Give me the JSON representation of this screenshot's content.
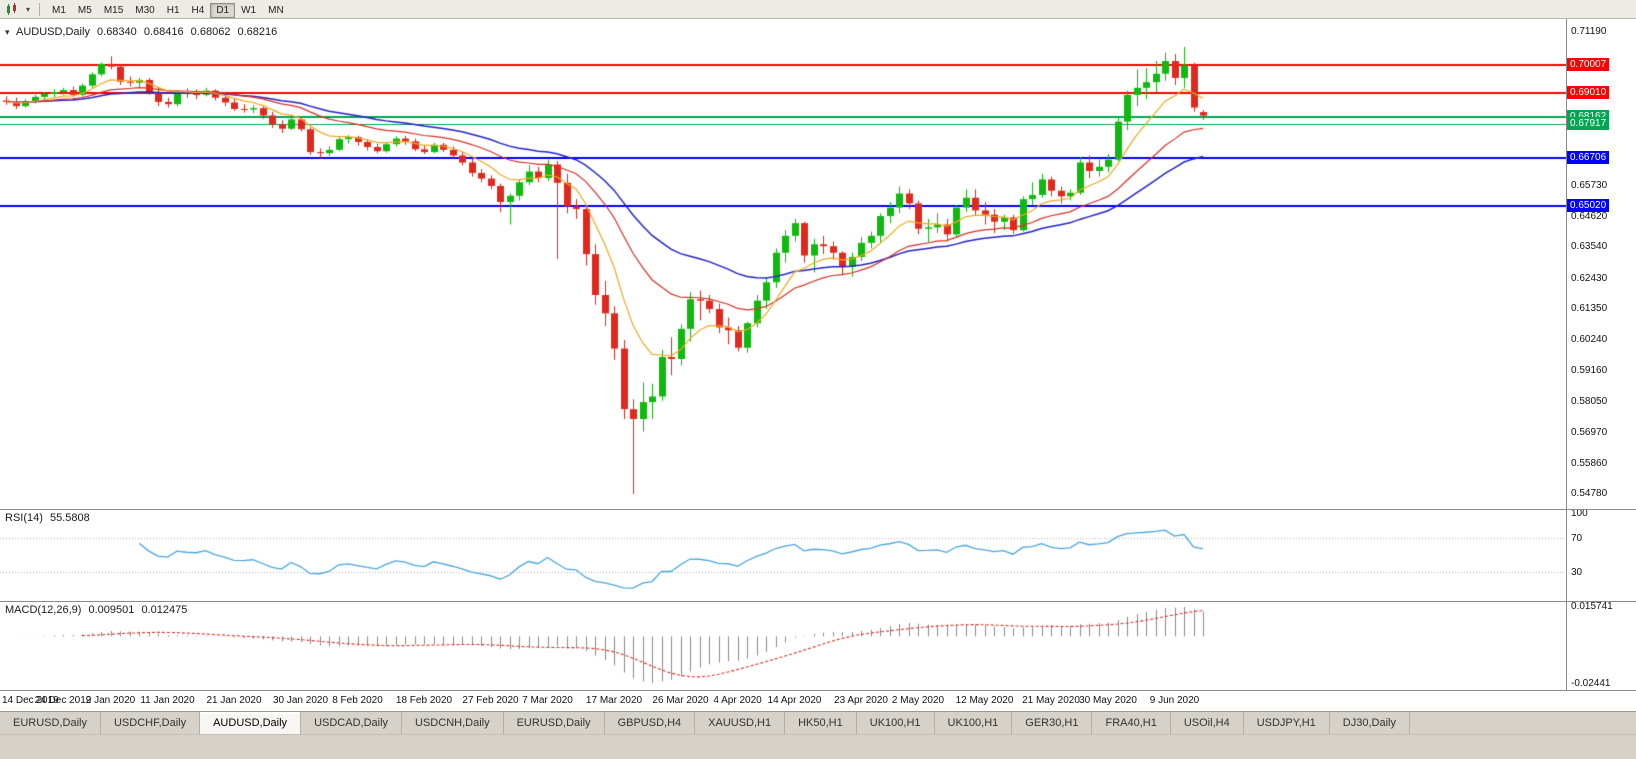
{
  "toolbar": {
    "timeframes": [
      {
        "label": "M1",
        "active": false
      },
      {
        "label": "M5",
        "active": false
      },
      {
        "label": "M15",
        "active": false
      },
      {
        "label": "M30",
        "active": false
      },
      {
        "label": "H1",
        "active": false
      },
      {
        "label": "H4",
        "active": false
      },
      {
        "label": "D1",
        "active": true
      },
      {
        "label": "W1",
        "active": false
      },
      {
        "label": "MN",
        "active": false
      }
    ]
  },
  "chart": {
    "title": {
      "symbol": "AUDUSD,Daily",
      "open": "0.68340",
      "high": "0.68416",
      "low": "0.68062",
      "close": "0.68216"
    },
    "colors": {
      "up": "#0fb90f",
      "down": "#e0291e",
      "ma_fast": "#efa71f",
      "ma_mid": "#d93025",
      "ma_slow": "#2222cc",
      "rsi_line": "#4aa6de",
      "rsi_level": "#b0b0b0",
      "macd_hist": "#8a8a8a",
      "macd_signal": "#d93025",
      "axis_text": "#111111"
    },
    "price_axis": {
      "range": {
        "max": 0.715,
        "min": 0.544
      },
      "ticks": [
        "0.71190",
        "0.65730",
        "0.64620",
        "0.63540",
        "0.62430",
        "0.61350",
        "0.60240",
        "0.59160",
        "0.58050",
        "0.56970",
        "0.55860",
        "0.54780"
      ]
    },
    "hlines": [
      {
        "price": 0.70007,
        "label": "0.70007",
        "color": "#ff0000",
        "width": 2
      },
      {
        "price": 0.6901,
        "label": "0.69010",
        "color": "#ff0000",
        "width": 2
      },
      {
        "price": 0.68162,
        "label": "0.68162",
        "color": "#00a651",
        "width": 2
      },
      {
        "price": 0.67917,
        "label": "0.67917",
        "color": "#00a651",
        "width": 1
      },
      {
        "price": 0.66706,
        "label": "0.66706",
        "color": "#0000ff",
        "width": 2
      },
      {
        "price": 0.6502,
        "label": "0.65020",
        "color": "#0000ff",
        "width": 2
      }
    ],
    "date_labels": [
      {
        "label": "14 Dec 2019",
        "i": 0
      },
      {
        "label": "24 Dec 2019",
        "i": 6
      },
      {
        "label": "2 Jan 2020",
        "i": 11
      },
      {
        "label": "11 Jan 2020",
        "i": 17
      },
      {
        "label": "21 Jan 2020",
        "i": 24
      },
      {
        "label": "30 Jan 2020",
        "i": 31
      },
      {
        "label": "8 Feb 2020",
        "i": 37
      },
      {
        "label": "18 Feb 2020",
        "i": 44
      },
      {
        "label": "27 Feb 2020",
        "i": 51
      },
      {
        "label": "7 Mar 2020",
        "i": 57
      },
      {
        "label": "17 Mar 2020",
        "i": 64
      },
      {
        "label": "26 Mar 2020",
        "i": 71
      },
      {
        "label": "4 Apr 2020",
        "i": 77
      },
      {
        "label": "14 Apr 2020",
        "i": 83
      },
      {
        "label": "23 Apr 2020",
        "i": 90
      },
      {
        "label": "2 May 2020",
        "i": 96
      },
      {
        "label": "12 May 2020",
        "i": 103
      },
      {
        "label": "21 May 2020",
        "i": 110
      },
      {
        "label": "30 May 2020",
        "i": 116
      },
      {
        "label": "9 Jun 2020",
        "i": 123
      }
    ],
    "ma": {
      "fast_period": 8,
      "mid_period": 20,
      "slow_period": 34
    },
    "candles": [
      [
        0.6875,
        0.689,
        0.686,
        0.687
      ],
      [
        0.687,
        0.6885,
        0.6845,
        0.6855
      ],
      [
        0.6855,
        0.688,
        0.685,
        0.6872
      ],
      [
        0.6872,
        0.6895,
        0.6865,
        0.6888
      ],
      [
        0.6888,
        0.6905,
        0.688,
        0.6898
      ],
      [
        0.6898,
        0.6915,
        0.6885,
        0.6905
      ],
      [
        0.6905,
        0.692,
        0.6895,
        0.6912
      ],
      [
        0.6912,
        0.6925,
        0.6888,
        0.6895
      ],
      [
        0.6895,
        0.6935,
        0.689,
        0.6928
      ],
      [
        0.6928,
        0.6975,
        0.692,
        0.6968
      ],
      [
        0.6968,
        0.701,
        0.696,
        0.7005
      ],
      [
        0.7005,
        0.7032,
        0.6985,
        0.6995
      ],
      [
        0.6995,
        0.7005,
        0.693,
        0.6942
      ],
      [
        0.6942,
        0.696,
        0.6925,
        0.6938
      ],
      [
        0.6938,
        0.6955,
        0.692,
        0.6948
      ],
      [
        0.6948,
        0.6955,
        0.6895,
        0.6905
      ],
      [
        0.6905,
        0.692,
        0.6855,
        0.687
      ],
      [
        0.687,
        0.6885,
        0.685,
        0.6862
      ],
      [
        0.6862,
        0.6912,
        0.6855,
        0.6905
      ],
      [
        0.6905,
        0.6918,
        0.6885,
        0.6898
      ],
      [
        0.6898,
        0.6915,
        0.688,
        0.6895
      ],
      [
        0.6895,
        0.692,
        0.689,
        0.691
      ],
      [
        0.691,
        0.6915,
        0.6875,
        0.6885
      ],
      [
        0.6885,
        0.6895,
        0.6855,
        0.6868
      ],
      [
        0.6868,
        0.688,
        0.6838,
        0.6845
      ],
      [
        0.6845,
        0.6862,
        0.6832,
        0.6843
      ],
      [
        0.6843,
        0.6858,
        0.683,
        0.6848
      ],
      [
        0.6848,
        0.6855,
        0.681,
        0.6822
      ],
      [
        0.6822,
        0.6835,
        0.6778,
        0.679
      ],
      [
        0.679,
        0.6805,
        0.676,
        0.6775
      ],
      [
        0.6775,
        0.6815,
        0.677,
        0.6808
      ],
      [
        0.6808,
        0.6818,
        0.6765,
        0.6773
      ],
      [
        0.6773,
        0.678,
        0.6682,
        0.6692
      ],
      [
        0.6692,
        0.6705,
        0.667,
        0.6688
      ],
      [
        0.6688,
        0.6712,
        0.6678,
        0.67
      ],
      [
        0.67,
        0.6745,
        0.6695,
        0.6738
      ],
      [
        0.6738,
        0.6752,
        0.6722,
        0.6745
      ],
      [
        0.6745,
        0.675,
        0.6715,
        0.6728
      ],
      [
        0.6728,
        0.6738,
        0.6698,
        0.671
      ],
      [
        0.671,
        0.6722,
        0.6688,
        0.6695
      ],
      [
        0.6695,
        0.6728,
        0.669,
        0.672
      ],
      [
        0.672,
        0.6748,
        0.6712,
        0.674
      ],
      [
        0.674,
        0.675,
        0.6718,
        0.673
      ],
      [
        0.673,
        0.674,
        0.6695,
        0.6702
      ],
      [
        0.6702,
        0.6715,
        0.6685,
        0.6692
      ],
      [
        0.6692,
        0.6725,
        0.6688,
        0.6718
      ],
      [
        0.6718,
        0.6726,
        0.6692,
        0.67
      ],
      [
        0.67,
        0.6712,
        0.667,
        0.668
      ],
      [
        0.668,
        0.6692,
        0.6645,
        0.6655
      ],
      [
        0.6655,
        0.6668,
        0.6605,
        0.6618
      ],
      [
        0.6618,
        0.6632,
        0.6585,
        0.6598
      ],
      [
        0.6598,
        0.661,
        0.656,
        0.6572
      ],
      [
        0.6572,
        0.658,
        0.648,
        0.6515
      ],
      [
        0.6515,
        0.6545,
        0.6435,
        0.6537
      ],
      [
        0.6537,
        0.6595,
        0.652,
        0.6585
      ],
      [
        0.6585,
        0.6645,
        0.6575,
        0.6623
      ],
      [
        0.6623,
        0.664,
        0.6585,
        0.66
      ],
      [
        0.66,
        0.6665,
        0.659,
        0.6648
      ],
      [
        0.6648,
        0.666,
        0.6313,
        0.6583
      ],
      [
        0.6583,
        0.6615,
        0.6475,
        0.65
      ],
      [
        0.65,
        0.6525,
        0.6455,
        0.649
      ],
      [
        0.649,
        0.65,
        0.629,
        0.633
      ],
      [
        0.633,
        0.6365,
        0.615,
        0.6185
      ],
      [
        0.6185,
        0.6235,
        0.6075,
        0.612
      ],
      [
        0.612,
        0.6145,
        0.5955,
        0.5995
      ],
      [
        0.5995,
        0.6025,
        0.5745,
        0.578
      ],
      [
        0.578,
        0.5815,
        0.5478,
        0.5745
      ],
      [
        0.5745,
        0.5875,
        0.57,
        0.5805
      ],
      [
        0.5805,
        0.587,
        0.5745,
        0.5825
      ],
      [
        0.5825,
        0.599,
        0.581,
        0.5965
      ],
      [
        0.5965,
        0.6035,
        0.59,
        0.5958
      ],
      [
        0.5958,
        0.608,
        0.5935,
        0.6065
      ],
      [
        0.6065,
        0.6195,
        0.602,
        0.617
      ],
      [
        0.617,
        0.62,
        0.6095,
        0.6165
      ],
      [
        0.6165,
        0.6185,
        0.612,
        0.6135
      ],
      [
        0.6135,
        0.6155,
        0.605,
        0.607
      ],
      [
        0.607,
        0.6105,
        0.601,
        0.606
      ],
      [
        0.606,
        0.6075,
        0.5985,
        0.5998
      ],
      [
        0.5998,
        0.609,
        0.598,
        0.6085
      ],
      [
        0.6085,
        0.6185,
        0.607,
        0.6165
      ],
      [
        0.6165,
        0.6245,
        0.6135,
        0.623
      ],
      [
        0.623,
        0.635,
        0.621,
        0.6335
      ],
      [
        0.6335,
        0.6415,
        0.63,
        0.6395
      ],
      [
        0.6395,
        0.6455,
        0.6375,
        0.644
      ],
      [
        0.644,
        0.6445,
        0.63,
        0.6325
      ],
      [
        0.6325,
        0.6385,
        0.6265,
        0.6365
      ],
      [
        0.6365,
        0.6395,
        0.633,
        0.6358
      ],
      [
        0.6358,
        0.6375,
        0.631,
        0.6335
      ],
      [
        0.6335,
        0.634,
        0.6255,
        0.6285
      ],
      [
        0.6285,
        0.6335,
        0.625,
        0.632
      ],
      [
        0.632,
        0.639,
        0.6305,
        0.637
      ],
      [
        0.637,
        0.641,
        0.635,
        0.6395
      ],
      [
        0.6395,
        0.6475,
        0.637,
        0.6465
      ],
      [
        0.6465,
        0.6515,
        0.644,
        0.6495
      ],
      [
        0.6495,
        0.657,
        0.6475,
        0.6545
      ],
      [
        0.6545,
        0.656,
        0.649,
        0.651
      ],
      [
        0.651,
        0.652,
        0.64,
        0.642
      ],
      [
        0.642,
        0.6455,
        0.6372,
        0.6425
      ],
      [
        0.6425,
        0.6475,
        0.6405,
        0.6435
      ],
      [
        0.6435,
        0.6455,
        0.6375,
        0.64
      ],
      [
        0.64,
        0.6505,
        0.639,
        0.6495
      ],
      [
        0.6495,
        0.656,
        0.648,
        0.653
      ],
      [
        0.653,
        0.656,
        0.6465,
        0.6485
      ],
      [
        0.6485,
        0.6515,
        0.6435,
        0.647
      ],
      [
        0.647,
        0.649,
        0.6405,
        0.6445
      ],
      [
        0.6445,
        0.647,
        0.6415,
        0.646
      ],
      [
        0.646,
        0.647,
        0.6402,
        0.6415
      ],
      [
        0.6415,
        0.6535,
        0.641,
        0.6525
      ],
      [
        0.6525,
        0.6585,
        0.6505,
        0.654
      ],
      [
        0.654,
        0.6615,
        0.653,
        0.6595
      ],
      [
        0.6595,
        0.6605,
        0.6535,
        0.6555
      ],
      [
        0.6555,
        0.657,
        0.651,
        0.6535
      ],
      [
        0.6535,
        0.656,
        0.652,
        0.6548
      ],
      [
        0.6548,
        0.6675,
        0.654,
        0.6655
      ],
      [
        0.6655,
        0.668,
        0.66,
        0.6625
      ],
      [
        0.6625,
        0.6665,
        0.6605,
        0.664
      ],
      [
        0.664,
        0.6685,
        0.662,
        0.6665
      ],
      [
        0.6665,
        0.6815,
        0.666,
        0.68
      ],
      [
        0.68,
        0.691,
        0.677,
        0.6895
      ],
      [
        0.6895,
        0.6985,
        0.6855,
        0.692
      ],
      [
        0.692,
        0.699,
        0.688,
        0.694
      ],
      [
        0.694,
        0.7015,
        0.6905,
        0.697
      ],
      [
        0.697,
        0.7045,
        0.6945,
        0.7015
      ],
      [
        0.7015,
        0.704,
        0.693,
        0.6955
      ],
      [
        0.6955,
        0.7065,
        0.692,
        0.7
      ],
      [
        0.7,
        0.701,
        0.6835,
        0.685
      ],
      [
        0.6834,
        0.68416,
        0.68062,
        0.68216
      ]
    ]
  },
  "rsi": {
    "name": "RSI(14)",
    "value": "55.5808",
    "period": 14,
    "levels": [
      70,
      30
    ],
    "axis_ticks": [
      "100",
      "70",
      "30"
    ]
  },
  "macd": {
    "name": "MACD(12,26,9)",
    "main_value": "0.009501",
    "signal_value": "0.012475",
    "fast": 12,
    "slow": 26,
    "signal": 9,
    "axis_top": "0.015741",
    "axis_bottom": "-0.02441"
  },
  "tabs": [
    {
      "label": "EURUSD,Daily",
      "active": false
    },
    {
      "label": "USDCHF,Daily",
      "active": false
    },
    {
      "label": "AUDUSD,Daily",
      "active": true
    },
    {
      "label": "USDCAD,Daily",
      "active": false
    },
    {
      "label": "USDCNH,Daily",
      "active": false
    },
    {
      "label": "EURUSD,Daily",
      "active": false
    },
    {
      "label": "GBPUSD,H4",
      "active": false
    },
    {
      "label": "XAUUSD,H1",
      "active": false
    },
    {
      "label": "HK50,H1",
      "active": false
    },
    {
      "label": "UK100,H1",
      "active": false
    },
    {
      "label": "UK100,H1",
      "active": false
    },
    {
      "label": "GER30,H1",
      "active": false
    },
    {
      "label": "FRA40,H1",
      "active": false
    },
    {
      "label": "USOil,H4",
      "active": false
    },
    {
      "label": "USDJPY,H1",
      "active": false
    },
    {
      "label": "DJ30,Daily",
      "active": false
    }
  ]
}
